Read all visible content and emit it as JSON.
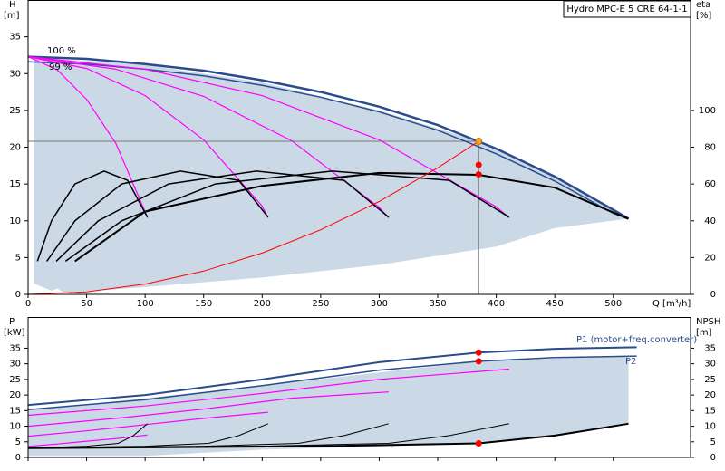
{
  "chart_data": [
    {
      "type": "line",
      "title": "Hydro MPC-E 5 CRE 64-1-1",
      "y_label": "H",
      "y_unit": "[m]",
      "y2_label": "eta",
      "y2_unit": "[%]",
      "x_label": "Q [m³/h]",
      "xlim": [
        0,
        566
      ],
      "xticks": [
        0,
        50,
        100,
        150,
        200,
        250,
        300,
        350,
        400,
        450,
        500
      ],
      "ylim": [
        0,
        40
      ],
      "yticks": [
        0,
        5,
        10,
        15,
        20,
        25,
        30,
        35
      ],
      "y2lim": [
        0,
        160
      ],
      "y2ticks": [
        0,
        20,
        40,
        60,
        80,
        100
      ],
      "area": {
        "color": "#cbd8e6",
        "x": [
          5,
          100,
          200,
          300,
          385,
          450,
          513,
          450,
          400,
          300,
          200,
          100,
          50,
          30,
          25,
          20,
          5
        ],
        "values": [
          32.2,
          31.2,
          28.8,
          25,
          20.8,
          16,
          10.3,
          9,
          6.5,
          4,
          2.3,
          1,
          0.4,
          0.3,
          0.8,
          0.5,
          1.5
        ]
      },
      "series": [
        {
          "name": "100 %",
          "color": "#2b4c8c",
          "width": 2.5,
          "x": [
            0,
            50,
            100,
            150,
            200,
            250,
            300,
            350,
            400,
            450,
            500,
            513
          ],
          "values": [
            32.3,
            32.0,
            31.3,
            30.4,
            29.1,
            27.5,
            25.5,
            23.0,
            19.8,
            16.0,
            11.5,
            10.3
          ]
        },
        {
          "name": "99 %",
          "color": "#2b4c8c",
          "width": 1.5,
          "x": [
            0,
            50,
            100,
            150,
            200,
            250,
            300,
            350,
            400,
            450,
            500,
            513
          ],
          "values": [
            31.6,
            31.3,
            30.6,
            29.7,
            28.4,
            26.8,
            24.8,
            22.3,
            19.1,
            15.4,
            11.0,
            10.3
          ]
        },
        {
          "color": "#ff00ff",
          "width": 1.2,
          "x": [
            0,
            25,
            50,
            75,
            100,
            102
          ],
          "values": [
            32.3,
            30.5,
            26.5,
            20.5,
            11.2,
            10.4
          ]
        },
        {
          "color": "#ff00ff",
          "width": 1.2,
          "x": [
            0,
            50,
            100,
            150,
            200,
            205
          ],
          "values": [
            32.3,
            30.7,
            27,
            21,
            12,
            10.4
          ]
        },
        {
          "color": "#ff00ff",
          "width": 1.2,
          "x": [
            0,
            75,
            150,
            225,
            300,
            308
          ],
          "values": [
            32.3,
            30.6,
            26.9,
            20.9,
            11.8,
            10.4
          ]
        },
        {
          "color": "#ff00ff",
          "width": 1.2,
          "x": [
            0,
            100,
            200,
            300,
            400,
            411
          ],
          "values": [
            32.3,
            30.6,
            27,
            21,
            11.9,
            10.4
          ]
        },
        {
          "color": "#000000",
          "width": 1.5,
          "axis": "y2",
          "x": [
            8,
            20,
            40,
            65,
            85,
            102
          ],
          "values": [
            18,
            40,
            60,
            67,
            62,
            42
          ]
        },
        {
          "color": "#000000",
          "width": 1.5,
          "axis": "y2",
          "x": [
            16,
            40,
            80,
            130,
            180,
            205
          ],
          "values": [
            18,
            40,
            60,
            67,
            62,
            42
          ]
        },
        {
          "color": "#000000",
          "width": 1.5,
          "axis": "y2",
          "x": [
            24,
            60,
            120,
            195,
            270,
            308
          ],
          "values": [
            18,
            40,
            60,
            67,
            62,
            42
          ]
        },
        {
          "color": "#000000",
          "width": 1.5,
          "axis": "y2",
          "x": [
            32,
            80,
            160,
            260,
            360,
            411
          ],
          "values": [
            18,
            40,
            60,
            67,
            62,
            42
          ]
        },
        {
          "color": "#000000",
          "width": 2,
          "axis": "y2",
          "x": [
            40,
            100,
            200,
            300,
            385,
            450,
            513
          ],
          "values": [
            18,
            45,
            59,
            66,
            65,
            58,
            41
          ]
        },
        {
          "color": "#ff0000",
          "width": 1,
          "x": [
            0,
            50,
            100,
            150,
            200,
            250,
            300,
            350,
            385
          ],
          "values": [
            0,
            0.35,
            1.4,
            3.16,
            5.61,
            8.77,
            12.63,
            17.19,
            20.8
          ]
        }
      ],
      "points": [
        {
          "color": "#f5a623",
          "x": 385,
          "values": 20.8,
          "ref": true
        },
        {
          "color": "#ff0000",
          "x": 385,
          "values": 17.6
        },
        {
          "color": "#ff0000",
          "x": 385,
          "values": 16.3
        }
      ]
    },
    {
      "type": "line",
      "y_label": "P",
      "y_unit": "[kW]",
      "y2_label": "NPSH",
      "y2_unit": "[m]",
      "xlim": [
        0,
        566
      ],
      "xticks": [
        0,
        50,
        100,
        150,
        200,
        250,
        300,
        350,
        400,
        450,
        500
      ],
      "ylim": [
        0,
        45
      ],
      "yticks": [
        0,
        5,
        10,
        15,
        20,
        25,
        30,
        35
      ],
      "y2lim": [
        0,
        45
      ],
      "y2ticks": [
        0,
        5,
        10,
        15,
        20,
        25,
        30,
        35
      ],
      "area": {
        "color": "#cbd8e6",
        "x": [
          0,
          200,
          385,
          513,
          513,
          450,
          385,
          300,
          200,
          100,
          0
        ],
        "values": [
          15,
          23,
          30.8,
          32.5,
          11,
          7,
          4.5,
          3.5,
          2.5,
          0.5,
          0.5
        ]
      },
      "series": [
        {
          "name": "P1 (motor+freq.converter)",
          "color": "#2b4c8c",
          "width": 2,
          "x": [
            0,
            100,
            200,
            300,
            385,
            450,
            520
          ],
          "values": [
            16.8,
            20,
            25,
            30.5,
            33.6,
            34.8,
            35.3
          ]
        },
        {
          "name": "P2",
          "color": "#2b4c8c",
          "width": 1.5,
          "x": [
            0,
            100,
            200,
            300,
            385,
            450,
            520
          ],
          "values": [
            15.3,
            18.5,
            23,
            28,
            30.8,
            32,
            32.5
          ]
        },
        {
          "color": "#ff00ff",
          "width": 1.2,
          "x": [
            0,
            100,
            200,
            300,
            411
          ],
          "values": [
            13.5,
            16.5,
            20.5,
            25,
            28.3
          ]
        },
        {
          "color": "#ff00ff",
          "width": 1.2,
          "x": [
            0,
            75,
            150,
            225,
            308
          ],
          "values": [
            10,
            12.5,
            15.5,
            19,
            21
          ]
        },
        {
          "color": "#ff00ff",
          "width": 1.2,
          "x": [
            0,
            50,
            100,
            150,
            205
          ],
          "values": [
            6.8,
            8.5,
            10.5,
            12.5,
            14.5
          ]
        },
        {
          "color": "#ff00ff",
          "width": 1.2,
          "x": [
            0,
            25,
            50,
            75,
            102
          ],
          "values": [
            3.5,
            4.3,
            5.2,
            6,
            7.2
          ]
        },
        {
          "color": "#000000",
          "width": 1,
          "axis": "y2",
          "x": [
            0,
            50,
            77,
            90,
            102
          ],
          "values": [
            3,
            3.6,
            4.5,
            7,
            10.8
          ]
        },
        {
          "color": "#000000",
          "width": 1,
          "axis": "y2",
          "x": [
            0,
            100,
            154,
            180,
            205
          ],
          "values": [
            3,
            3.6,
            4.5,
            7,
            10.8
          ]
        },
        {
          "color": "#000000",
          "width": 1,
          "axis": "y2",
          "x": [
            0,
            150,
            231,
            270,
            308
          ],
          "values": [
            3,
            3.6,
            4.5,
            7,
            10.8
          ]
        },
        {
          "color": "#000000",
          "width": 1,
          "axis": "y2",
          "x": [
            0,
            200,
            308,
            360,
            411
          ],
          "values": [
            3,
            3.6,
            4.5,
            7,
            10.8
          ]
        },
        {
          "color": "#000000",
          "width": 2,
          "axis": "y2",
          "x": [
            0,
            250,
            385,
            450,
            513
          ],
          "values": [
            3,
            3.6,
            4.5,
            7,
            10.8
          ]
        }
      ],
      "points": [
        {
          "color": "#ff0000",
          "x": 385,
          "values": 33.6
        },
        {
          "color": "#ff0000",
          "x": 385,
          "values": 30.8
        },
        {
          "color": "#ff0000",
          "x": 385,
          "values": 4.5,
          "axis": "y2"
        }
      ]
    }
  ]
}
